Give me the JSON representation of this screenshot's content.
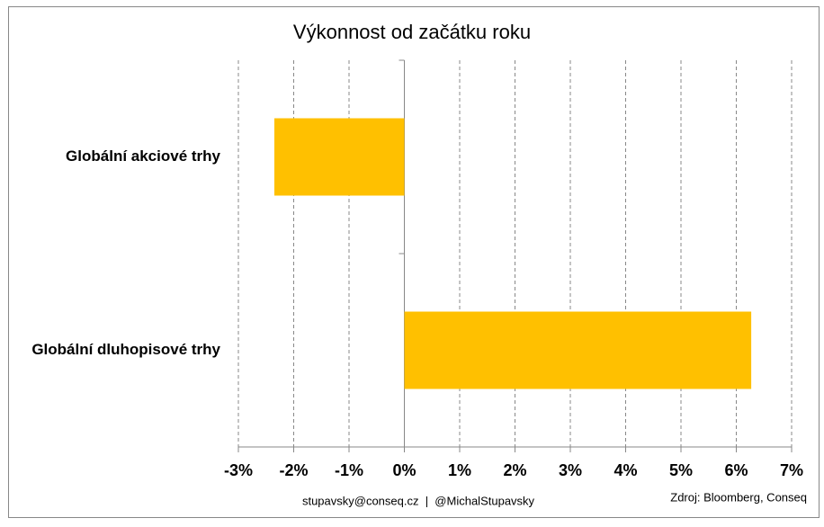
{
  "chart_data": {
    "type": "bar",
    "orientation": "horizontal",
    "title": "Výkonnost od začátku roku",
    "categories": [
      "Globální akciové trhy",
      "Globální dluhopisové trhy"
    ],
    "values": [
      -2.35,
      6.27
    ],
    "color": "#ffc000",
    "xlim": [
      -3,
      7
    ],
    "xticks": [
      {
        "value": -3,
        "label": "-3%"
      },
      {
        "value": -2,
        "label": "-2%"
      },
      {
        "value": -1,
        "label": "-1%"
      },
      {
        "value": 0,
        "label": "0%"
      },
      {
        "value": 1,
        "label": "1%"
      },
      {
        "value": 2,
        "label": "2%"
      },
      {
        "value": 3,
        "label": "3%"
      },
      {
        "value": 4,
        "label": "4%"
      },
      {
        "value": 5,
        "label": "5%"
      },
      {
        "value": 6,
        "label": "6%"
      },
      {
        "value": 7,
        "label": "7%"
      }
    ],
    "grid": true,
    "footer": "stupavsky@conseq.cz  |  @MichalStupavsky",
    "source": "Zdroj: Bloomberg, Conseq"
  }
}
